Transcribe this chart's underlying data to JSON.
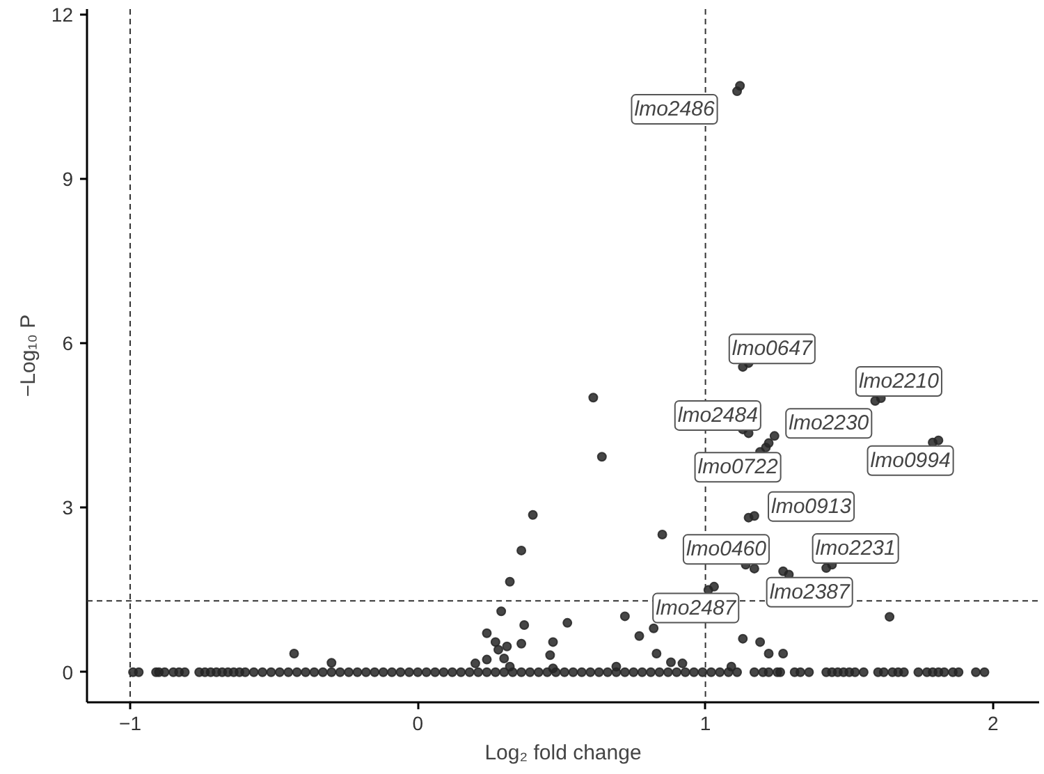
{
  "chart_data": {
    "type": "scatter",
    "xlabel": "Log₂ fold change",
    "ylabel": "−Log₁₀ P",
    "xlim": [
      -1.15,
      2.16
    ],
    "ylim": [
      -0.55,
      12.1
    ],
    "xticks": [
      -1,
      0,
      1,
      2
    ],
    "yticks": [
      0,
      3,
      6,
      9,
      12
    ],
    "grid": false,
    "marker": "circle",
    "ref_lines": [
      {
        "axis": "x",
        "value": -1,
        "line_style": "dashed",
        "color": "#333333"
      },
      {
        "axis": "x",
        "value": 1,
        "line_style": "dashed",
        "color": "#333333"
      },
      {
        "axis": "y",
        "value": 1.3,
        "line_style": "dashed",
        "color": "#333333"
      }
    ],
    "annotations": [
      {
        "text": "lmo2486",
        "x": 1.11,
        "y": 10.6
      },
      {
        "text": "lmo0647",
        "x": 1.13,
        "y": 5.57
      },
      {
        "text": "lmo2210",
        "x": 1.59,
        "y": 4.95
      },
      {
        "text": "lmo2484",
        "x": 1.13,
        "y": 4.43
      },
      {
        "text": "lmo2230",
        "x": 1.24,
        "y": 4.31
      },
      {
        "text": "lmo0722",
        "x": 1.19,
        "y": 4.02
      },
      {
        "text": "lmo0994",
        "x": 1.79,
        "y": 4.19
      },
      {
        "text": "lmo0913",
        "x": 1.15,
        "y": 2.82
      },
      {
        "text": "lmo0460",
        "x": 1.14,
        "y": 1.96
      },
      {
        "text": "lmo2387",
        "x": 1.27,
        "y": 1.84
      },
      {
        "text": "lmo2231",
        "x": 1.42,
        "y": 1.9
      },
      {
        "text": "lmo2487",
        "x": 1.01,
        "y": 1.5
      }
    ],
    "series": [
      {
        "color": "#262626",
        "x": [
          1.11,
          1.12,
          1.13,
          1.15,
          1.59,
          1.61,
          1.13,
          1.15,
          1.19,
          1.21,
          1.22,
          1.24,
          1.79,
          1.81,
          1.15,
          1.17,
          1.14,
          1.17,
          1.27,
          1.29,
          1.42,
          1.44,
          1.01,
          1.03,
          0.61,
          0.64,
          0.4,
          0.36,
          0.32,
          0.85,
          0.29,
          0.37,
          0.52,
          0.24,
          0.27,
          0.28,
          0.31,
          0.3,
          0.36,
          0.46,
          0.47,
          0.24,
          0.2,
          0.32,
          0.72,
          0.77,
          0.82,
          0.83,
          0.88,
          0.92,
          1.09,
          1.13,
          1.19,
          1.22,
          1.27,
          1.64,
          -0.43,
          -0.3,
          0.69,
          0.47,
          -0.99,
          -0.97,
          -0.91,
          -0.9,
          -0.88,
          -0.85,
          -0.83,
          -0.81,
          -0.76,
          -0.74,
          -0.72,
          -0.7,
          -0.68,
          -0.66,
          -0.64,
          -0.62,
          -0.6,
          -0.57,
          -0.54,
          -0.51,
          -0.48,
          -0.45,
          -0.42,
          -0.39,
          -0.36,
          -0.33,
          -0.3,
          -0.27,
          -0.24,
          -0.21,
          -0.18,
          -0.15,
          -0.12,
          -0.09,
          -0.06,
          -0.03,
          0,
          0.03,
          0.06,
          0.09,
          0.12,
          0.15,
          0.18,
          0.21,
          0.24,
          0.27,
          0.3,
          0.33,
          0.36,
          0.39,
          0.42,
          0.45,
          0.48,
          0.51,
          0.54,
          0.57,
          0.6,
          0.63,
          0.66,
          0.69,
          0.72,
          0.75,
          0.78,
          0.81,
          0.84,
          0.87,
          0.9,
          0.93,
          0.96,
          0.99,
          1.02,
          1.05,
          1.08,
          1.11,
          1.17,
          1.2,
          1.22,
          1.25,
          1.26,
          1.31,
          1.33,
          1.36,
          1.42,
          1.44,
          1.46,
          1.48,
          1.5,
          1.52,
          1.55,
          1.6,
          1.62,
          1.65,
          1.67,
          1.69,
          1.74,
          1.77,
          1.79,
          1.81,
          1.83,
          1.86,
          1.88,
          1.94,
          1.97
        ],
        "values": [
          10.6,
          10.7,
          5.57,
          5.64,
          4.95,
          5.0,
          4.43,
          4.36,
          4.02,
          4.1,
          4.18,
          4.31,
          4.19,
          4.23,
          2.82,
          2.85,
          1.96,
          1.89,
          1.84,
          1.78,
          1.9,
          1.96,
          1.5,
          1.56,
          5.01,
          3.93,
          2.87,
          2.22,
          1.65,
          2.51,
          1.11,
          0.86,
          0.9,
          0.71,
          0.55,
          0.41,
          0.47,
          0.25,
          0.52,
          0.31,
          0.55,
          0.23,
          0.16,
          0.1,
          1.02,
          0.66,
          0.8,
          0.34,
          0.18,
          0.16,
          0.1,
          0.61,
          0.55,
          0.34,
          0.34,
          1.01,
          0.34,
          0.17,
          0.1,
          0.07,
          0,
          0,
          0,
          0,
          0,
          0,
          0,
          0,
          0,
          0,
          0,
          0,
          0,
          0,
          0,
          0,
          0,
          0,
          0,
          0,
          0,
          0,
          0,
          0,
          0,
          0,
          0,
          0,
          0,
          0,
          0,
          0,
          0,
          0,
          0,
          0,
          0,
          0,
          0,
          0,
          0,
          0,
          0,
          0,
          0,
          0,
          0,
          0,
          0,
          0,
          0,
          0,
          0,
          0,
          0,
          0,
          0,
          0,
          0,
          0,
          0,
          0,
          0,
          0,
          0,
          0,
          0,
          0,
          0,
          0,
          0,
          0,
          0,
          0,
          0,
          0,
          0,
          0,
          0,
          0,
          0,
          0,
          0,
          0,
          0,
          0,
          0,
          0,
          0,
          0,
          0,
          0,
          0,
          0,
          0,
          0,
          0,
          0,
          0,
          0,
          0,
          0,
          0
        ]
      }
    ]
  }
}
